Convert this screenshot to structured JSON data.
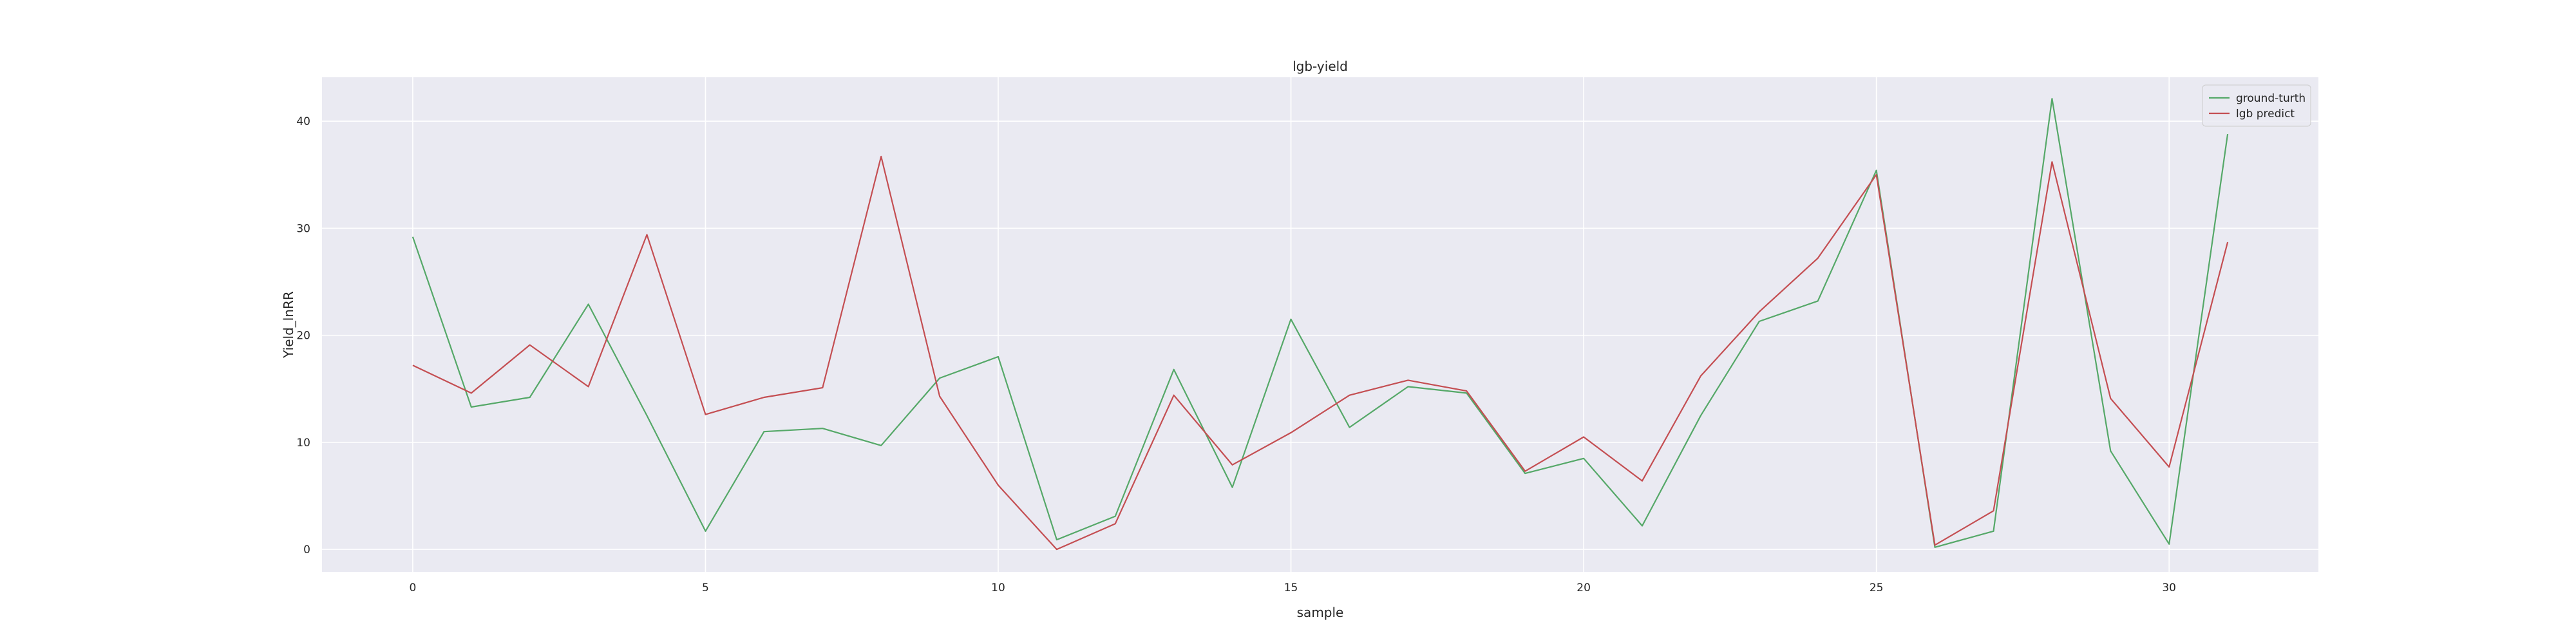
{
  "chart_data": {
    "type": "line",
    "title": "lgb-yield",
    "xlabel": "sample",
    "ylabel": "Yield_lnRR",
    "xlim": [
      -1.55,
      32.55
    ],
    "ylim": [
      -2.1,
      44.1
    ],
    "xticks": [
      0,
      5,
      10,
      15,
      20,
      25,
      30
    ],
    "yticks": [
      0,
      10,
      20,
      30,
      40
    ],
    "grid": true,
    "legend_position": "top-right",
    "background": "#eaeaf2",
    "grid_color": "#ffffff",
    "x": [
      0,
      1,
      2,
      3,
      4,
      5,
      6,
      7,
      8,
      9,
      10,
      11,
      12,
      13,
      14,
      15,
      16,
      17,
      18,
      19,
      20,
      21,
      22,
      23,
      24,
      25,
      26,
      27,
      28,
      29,
      30,
      31
    ],
    "series": [
      {
        "name": "ground-turth",
        "color": "#55a868",
        "values": [
          29.2,
          13.3,
          14.2,
          22.9,
          12.5,
          1.7,
          11.0,
          11.3,
          9.7,
          16.0,
          18.0,
          0.9,
          3.1,
          16.8,
          5.8,
          21.5,
          11.4,
          15.2,
          14.6,
          7.1,
          8.5,
          2.2,
          12.5,
          21.3,
          23.2,
          35.4,
          0.2,
          1.7,
          42.1,
          9.2,
          0.5,
          38.8
        ]
      },
      {
        "name": "lgb predict",
        "color": "#c44e52",
        "values": [
          17.2,
          14.6,
          19.1,
          15.2,
          29.4,
          12.6,
          14.2,
          15.1,
          36.7,
          14.3,
          6.0,
          0.0,
          2.4,
          14.4,
          7.9,
          10.9,
          14.4,
          15.8,
          14.8,
          7.3,
          10.5,
          6.4,
          16.2,
          22.2,
          27.2,
          35.0,
          0.4,
          3.6,
          36.2,
          14.1,
          7.7,
          28.7
        ]
      }
    ]
  }
}
